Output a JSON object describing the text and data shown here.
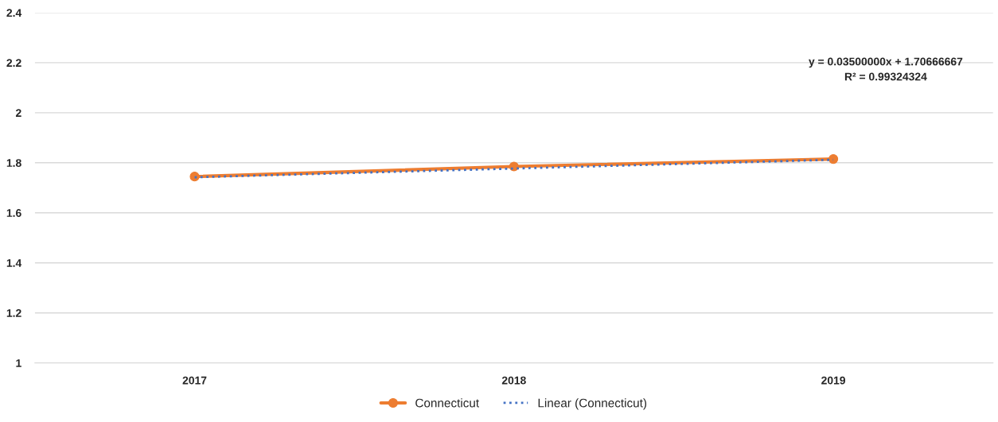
{
  "chart_data": {
    "type": "line",
    "categories": [
      "2017",
      "2018",
      "2019"
    ],
    "series": [
      {
        "name": "Connecticut",
        "color": "#ed7d31",
        "values": [
          1.745,
          1.785,
          1.815
        ],
        "marker": "circle",
        "line_style": "solid"
      },
      {
        "name": "Linear (Connecticut)",
        "color": "#4472c4",
        "values": [
          1.742,
          1.777,
          1.812
        ],
        "marker": "none",
        "line_style": "dotted"
      }
    ],
    "ylim": [
      1,
      2.4
    ],
    "yticks": [
      1,
      1.2,
      1.4,
      1.6,
      1.8,
      2,
      2.2,
      2.4
    ],
    "annotations": [
      "y = 0.03500000x + 1.70666667",
      "R² = 0.99324324"
    ],
    "grid": "y",
    "legend": "bottom"
  }
}
